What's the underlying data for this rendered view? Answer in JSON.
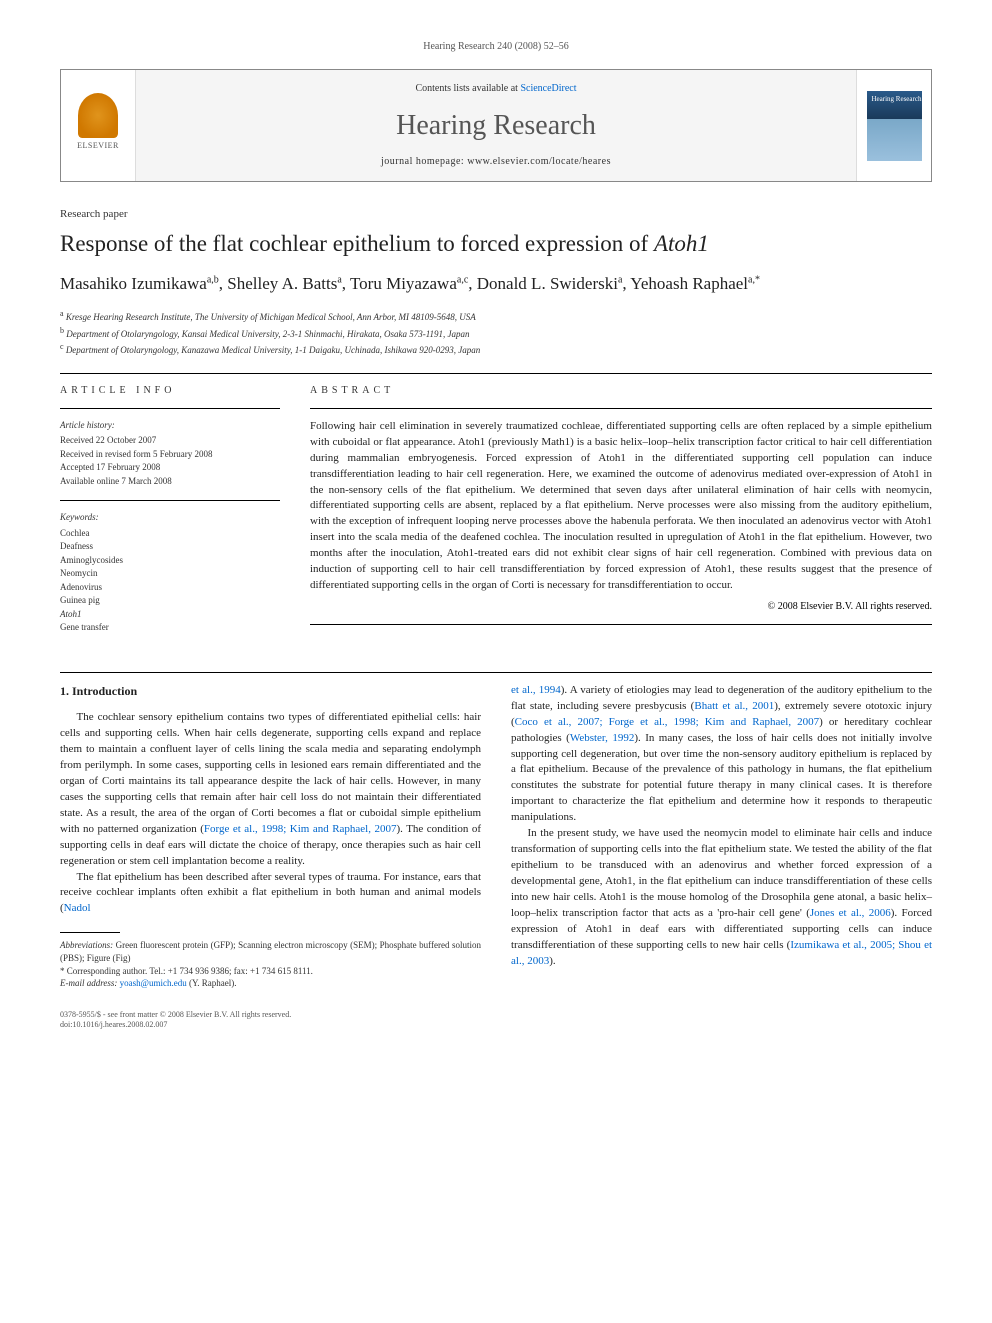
{
  "header": {
    "citation": "Hearing Research 240 (2008) 52–56",
    "contents_prefix": "Contents lists available at ",
    "contents_link": "ScienceDirect",
    "journal_name": "Hearing Research",
    "homepage_prefix": "journal homepage: ",
    "homepage_url": "www.elsevier.com/locate/heares",
    "publisher_name": "ELSEVIER",
    "cover_title": "Hearing Research"
  },
  "paper": {
    "type": "Research paper",
    "title_pre": "Response of the flat cochlear epithelium to forced expression of ",
    "title_italic": "Atoh1",
    "authors_html": "Masahiko Izumikawa",
    "author1_name": "Masahiko Izumikawa",
    "author1_sup": "a,b",
    "author2_name": "Shelley A. Batts",
    "author2_sup": "a",
    "author3_name": "Toru Miyazawa",
    "author3_sup": "a,c",
    "author4_name": "Donald L. Swiderski",
    "author4_sup": "a",
    "author5_name": "Yehoash Raphael",
    "author5_sup": "a,*",
    "sep": ", "
  },
  "affiliations": {
    "a": "Kresge Hearing Research Institute, The University of Michigan Medical School, Ann Arbor, MI 48109-5648, USA",
    "b": "Department of Otolaryngology, Kansai Medical University, 2-3-1 Shinmachi, Hirakata, Osaka 573-1191, Japan",
    "c": "Department of Otolaryngology, Kanazawa Medical University, 1-1 Daigaku, Uchinada, Ishikawa 920-0293, Japan"
  },
  "article_info": {
    "heading": "ARTICLE INFO",
    "history_label": "Article history:",
    "history": {
      "received": "Received 22 October 2007",
      "revised": "Received in revised form 5 February 2008",
      "accepted": "Accepted 17 February 2008",
      "online": "Available online 7 March 2008"
    },
    "keywords_label": "Keywords:",
    "keywords": [
      "Cochlea",
      "Deafness",
      "Aminoglycosides",
      "Neomycin",
      "Adenovirus",
      "Guinea pig",
      "Atoh1",
      "Gene transfer"
    ]
  },
  "abstract": {
    "heading": "ABSTRACT",
    "text": "Following hair cell elimination in severely traumatized cochleae, differentiated supporting cells are often replaced by a simple epithelium with cuboidal or flat appearance. Atoh1 (previously Math1) is a basic helix–loop–helix transcription factor critical to hair cell differentiation during mammalian embryogenesis. Forced expression of Atoh1 in the differentiated supporting cell population can induce transdifferentiation leading to hair cell regeneration. Here, we examined the outcome of adenovirus mediated over-expression of Atoh1 in the non-sensory cells of the flat epithelium. We determined that seven days after unilateral elimination of hair cells with neomycin, differentiated supporting cells are absent, replaced by a flat epithelium. Nerve processes were also missing from the auditory epithelium, with the exception of infrequent looping nerve processes above the habenula perforata. We then inoculated an adenovirus vector with Atoh1 insert into the scala media of the deafened cochlea. The inoculation resulted in upregulation of Atoh1 in the flat epithelium. However, two months after the inoculation, Atoh1-treated ears did not exhibit clear signs of hair cell regeneration. Combined with previous data on induction of supporting cell to hair cell transdifferentiation by forced expression of Atoh1, these results suggest that the presence of differentiated supporting cells in the organ of Corti is necessary for transdifferentiation to occur.",
    "copyright": "© 2008 Elsevier B.V. All rights reserved."
  },
  "body": {
    "section1_heading": "1. Introduction",
    "col1_p1": "The cochlear sensory epithelium contains two types of differentiated epithelial cells: hair cells and supporting cells. When hair cells degenerate, supporting cells expand and replace them to maintain a confluent layer of cells lining the scala media and separating endolymph from perilymph. In some cases, supporting cells in lesioned ears remain differentiated and the organ of Corti maintains its tall appearance despite the lack of hair cells. However, in many cases the supporting cells that remain after hair cell loss do not maintain their differentiated state. As a result, the area of the organ of Corti becomes a flat or cuboidal simple epithelium with no patterned organization (",
    "col1_link1": "Forge et al., 1998; Kim and Raphael, 2007",
    "col1_p1b": "). The condition of supporting cells in deaf ears will dictate the choice of therapy, once therapies such as hair cell regeneration or stem cell implantation become a reality.",
    "col1_p2": "The flat epithelium has been described after several types of trauma. For instance, ears that receive cochlear implants often exhibit a flat epithelium in both human and animal models (",
    "col1_link2": "Nadol",
    "col2_link1": "et al., 1994",
    "col2_p1a": "). A variety of etiologies may lead to degeneration of the auditory epithelium to the flat state, including severe presbycusis (",
    "col2_link2": "Bhatt et al., 2001",
    "col2_p1b": "), extremely severe ototoxic injury (",
    "col2_link3": "Coco et al., 2007; Forge et al., 1998; Kim and Raphael, 2007",
    "col2_p1c": ") or hereditary cochlear pathologies (",
    "col2_link4": "Webster, 1992",
    "col2_p1d": "). In many cases, the loss of hair cells does not initially involve supporting cell degeneration, but over time the non-sensory auditory epithelium is replaced by a flat epithelium. Because of the prevalence of this pathology in humans, the flat epithelium constitutes the substrate for potential future therapy in many clinical cases. It is therefore important to characterize the flat epithelium and determine how it responds to therapeutic manipulations.",
    "col2_p2a": "In the present study, we have used the neomycin model to eliminate hair cells and induce transformation of supporting cells into the flat epithelium state. We tested the ability of the flat epithelium to be transduced with an adenovirus and whether forced expression of a developmental gene, Atoh1, in the flat epithelium can induce transdifferentiation of these cells into new hair cells. Atoh1 is the mouse homolog of the Drosophila gene atonal, a basic helix–loop–helix transcription factor that acts as a 'pro-hair cell gene' (",
    "col2_link5": "Jones et al., 2006",
    "col2_p2b": "). Forced expression of Atoh1 in deaf ears with differentiated supporting cells can induce transdifferentiation of these supporting cells to new hair cells (",
    "col2_link6": "Izumikawa et al., 2005; Shou et al., 2003",
    "col2_p2c": ")."
  },
  "footnotes": {
    "abbrev_label": "Abbreviations:",
    "abbrev_text": " Green fluorescent protein (GFP); Scanning electron microscopy (SEM); Phosphate buffered solution (PBS); Figure (Fig)",
    "corr_label": "* Corresponding author.",
    "corr_text": " Tel.: +1 734 936 9386; fax: +1 734 615 8111.",
    "email_label": "E-mail address:",
    "email": " yoash@umich.edu",
    "email_suffix": " (Y. Raphael)."
  },
  "bottom": {
    "issn": "0378-5955/$ - see front matter © 2008 Elsevier B.V. All rights reserved.",
    "doi": "doi:10.1016/j.heares.2008.02.007"
  }
}
